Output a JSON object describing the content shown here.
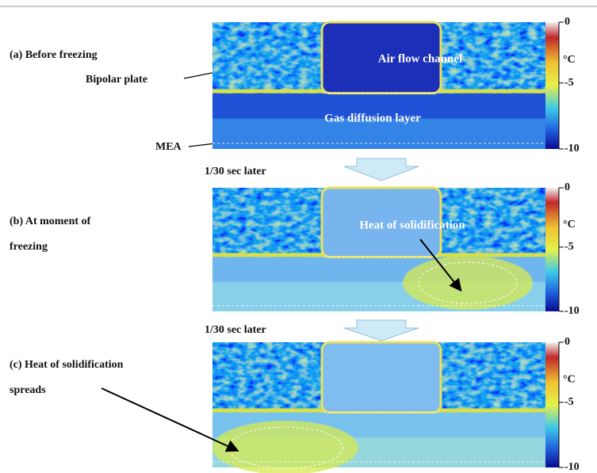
{
  "panels": [
    {
      "label_lines": [
        "(a) Before freezing"
      ],
      "annotations": [
        "Bipolar plate",
        "MEA",
        "Air flow channel",
        "Gas diffusion layer"
      ]
    },
    {
      "label_lines": [
        "(b) At moment of",
        "freezing"
      ],
      "annotations": [
        "Heat of solidification"
      ]
    },
    {
      "label_lines": [
        "(c) Heat of solidification",
        "spreads"
      ],
      "annotations": []
    }
  ],
  "transition": "1/30 sec later",
  "colorbar": {
    "top": "0",
    "unit": "°C",
    "middle": "-5",
    "bottom": "-10"
  }
}
